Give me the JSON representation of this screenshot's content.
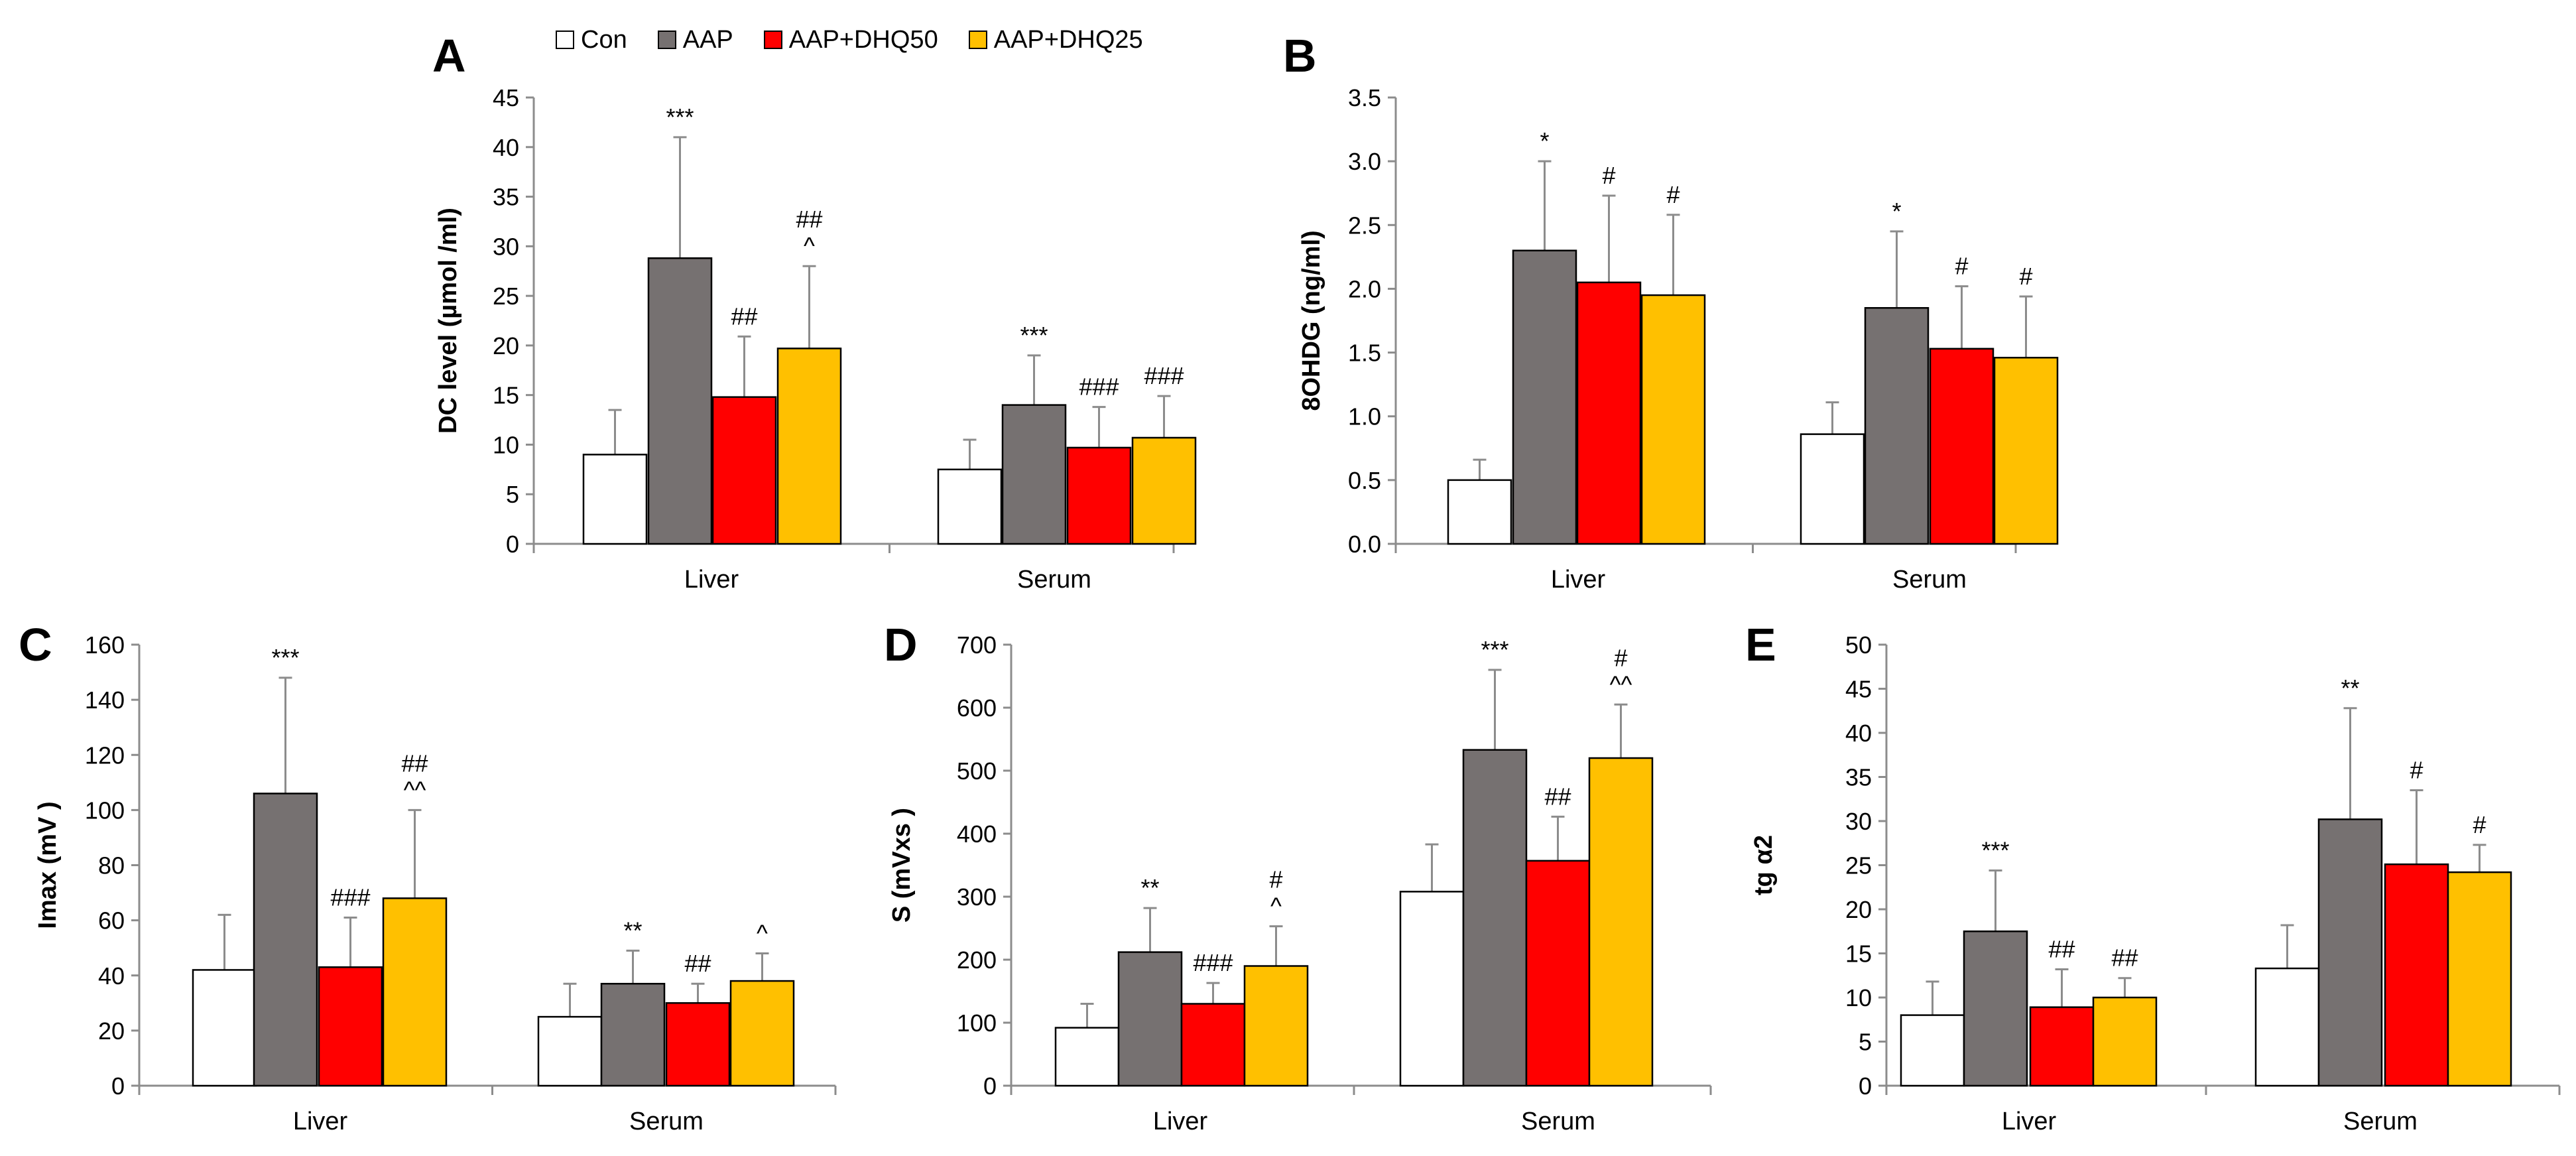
{
  "legend": {
    "items": [
      {
        "label": "Con",
        "color": "#ffffff"
      },
      {
        "label": "AAP",
        "color": "#767171"
      },
      {
        "label": "AAP+DHQ50",
        "color": "#ff0000"
      },
      {
        "label": "AAP+DHQ25",
        "color": "#ffc000"
      }
    ]
  },
  "chart_data": [
    {
      "panel": "A",
      "type": "bar",
      "ylabel": "DC level (µmol /ml)",
      "ylim": [
        0,
        45
      ],
      "yticks": [
        0,
        5,
        10,
        15,
        20,
        25,
        30,
        35,
        40,
        45
      ],
      "categories": [
        "Liver",
        "Serum"
      ],
      "series": [
        {
          "name": "Con",
          "values": [
            9.0,
            7.5
          ],
          "errors": [
            4.5,
            3.0
          ],
          "annotations": [
            "",
            ""
          ]
        },
        {
          "name": "AAP",
          "values": [
            28.8,
            14.0
          ],
          "errors": [
            12.2,
            5.0
          ],
          "annotations": [
            "***",
            "***"
          ]
        },
        {
          "name": "AAP+DHQ50",
          "values": [
            14.8,
            9.7
          ],
          "errors": [
            6.1,
            4.1
          ],
          "annotations": [
            "##",
            "###"
          ]
        },
        {
          "name": "AAP+DHQ25",
          "values": [
            19.7,
            10.7
          ],
          "errors": [
            8.3,
            4.2
          ],
          "annotations": [
            "##\n^",
            "###"
          ]
        }
      ]
    },
    {
      "panel": "B",
      "type": "bar",
      "ylabel": "8OHDG (ng/ml)",
      "ylim": [
        0,
        3.5
      ],
      "yticks": [
        "0.0",
        "0.5",
        "1.0",
        "1.5",
        "2.0",
        "2.5",
        "3.0",
        "3.5"
      ],
      "categories": [
        "Liver",
        "Serum"
      ],
      "series": [
        {
          "name": "Con",
          "values": [
            0.5,
            0.86
          ],
          "errors": [
            0.16,
            0.25
          ],
          "annotations": [
            "",
            ""
          ]
        },
        {
          "name": "AAP",
          "values": [
            2.3,
            1.85
          ],
          "errors": [
            0.7,
            0.6
          ],
          "annotations": [
            "*",
            "*"
          ]
        },
        {
          "name": "AAP+DHQ50",
          "values": [
            2.05,
            1.53
          ],
          "errors": [
            0.68,
            0.49
          ],
          "annotations": [
            "#",
            "#"
          ]
        },
        {
          "name": "AAP+DHQ25",
          "values": [
            1.95,
            1.46
          ],
          "errors": [
            0.63,
            0.48
          ],
          "annotations": [
            "#",
            "#"
          ]
        }
      ]
    },
    {
      "panel": "C",
      "type": "bar",
      "ylabel": "Imax (mV )",
      "ylim": [
        0,
        160
      ],
      "yticks": [
        0,
        20,
        40,
        60,
        80,
        100,
        120,
        140,
        160
      ],
      "categories": [
        "Liver",
        "Serum"
      ],
      "series": [
        {
          "name": "Con",
          "values": [
            42,
            25
          ],
          "errors": [
            20,
            12
          ],
          "annotations": [
            "",
            ""
          ]
        },
        {
          "name": "AAP",
          "values": [
            106,
            37
          ],
          "errors": [
            42,
            12
          ],
          "annotations": [
            "***",
            "**"
          ]
        },
        {
          "name": "AAP+DHQ50",
          "values": [
            43,
            30
          ],
          "errors": [
            18,
            7
          ],
          "annotations": [
            "###",
            "##"
          ]
        },
        {
          "name": "AAP+DHQ25",
          "values": [
            68,
            38
          ],
          "errors": [
            32,
            10
          ],
          "annotations": [
            "##\n^^",
            "^"
          ]
        }
      ]
    },
    {
      "panel": "D",
      "type": "bar",
      "ylabel": "S (mVxs )",
      "ylim": [
        0,
        700
      ],
      "yticks": [
        0,
        100,
        200,
        300,
        400,
        500,
        600,
        700
      ],
      "categories": [
        "Liver",
        "Serum"
      ],
      "series": [
        {
          "name": "Con",
          "values": [
            92,
            308
          ],
          "errors": [
            38,
            75
          ],
          "annotations": [
            "",
            ""
          ]
        },
        {
          "name": "AAP",
          "values": [
            212,
            533
          ],
          "errors": [
            70,
            127
          ],
          "annotations": [
            "**",
            "***"
          ]
        },
        {
          "name": "AAP+DHQ50",
          "values": [
            130,
            357
          ],
          "errors": [
            33,
            70
          ],
          "annotations": [
            "###",
            "##"
          ]
        },
        {
          "name": "AAP+DHQ25",
          "values": [
            190,
            520
          ],
          "errors": [
            63,
            85
          ],
          "annotations": [
            "#\n^",
            "#\n^^"
          ]
        }
      ]
    },
    {
      "panel": "E",
      "type": "bar",
      "ylabel": "tg α2",
      "ylim": [
        0,
        50
      ],
      "yticks": [
        0,
        5,
        10,
        15,
        20,
        25,
        30,
        35,
        40,
        45,
        50
      ],
      "categories": [
        "Liver",
        "Serum"
      ],
      "series": [
        {
          "name": "Con",
          "values": [
            8.0,
            13.3
          ],
          "errors": [
            3.8,
            4.9
          ],
          "annotations": [
            "",
            ""
          ]
        },
        {
          "name": "AAP",
          "values": [
            17.5,
            30.2
          ],
          "errors": [
            6.9,
            12.6
          ],
          "annotations": [
            "***",
            "**"
          ]
        },
        {
          "name": "AAP+DHQ50",
          "values": [
            8.9,
            25.1
          ],
          "errors": [
            4.3,
            8.4
          ],
          "annotations": [
            "##",
            "#"
          ]
        },
        {
          "name": "AAP+DHQ25",
          "values": [
            10.0,
            24.2
          ],
          "errors": [
            2.2,
            3.1
          ],
          "annotations": [
            "##",
            "#"
          ]
        }
      ]
    }
  ]
}
